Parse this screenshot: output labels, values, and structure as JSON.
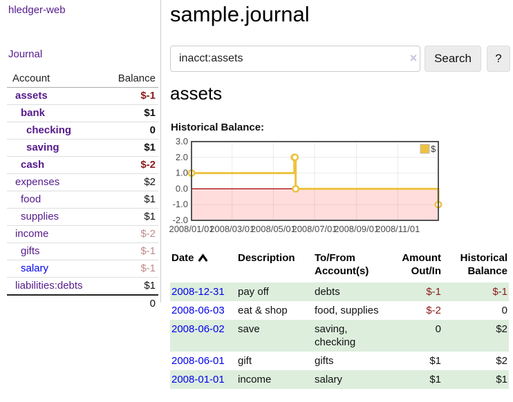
{
  "sidebar": {
    "brand": "hledger-web",
    "nav_journal": "Journal",
    "accounts": {
      "col_account": "Account",
      "col_balance": "Balance",
      "rows": [
        {
          "name": "assets",
          "depth": 1,
          "in_query": true,
          "balance": "$-1",
          "neg": "strong"
        },
        {
          "name": "bank",
          "depth": 2,
          "in_query": true,
          "balance": "$1",
          "neg": "none"
        },
        {
          "name": "checking",
          "depth": 3,
          "in_query": true,
          "balance": "0",
          "neg": "none"
        },
        {
          "name": "saving",
          "depth": 3,
          "in_query": true,
          "balance": "$1",
          "neg": "none"
        },
        {
          "name": "cash",
          "depth": 2,
          "in_query": true,
          "balance": "$-2",
          "neg": "strong"
        },
        {
          "name": "expenses",
          "depth": 1,
          "in_query": false,
          "balance": "$2",
          "neg": "none"
        },
        {
          "name": "food",
          "depth": 2,
          "in_query": false,
          "balance": "$1",
          "neg": "none"
        },
        {
          "name": "supplies",
          "depth": 2,
          "in_query": false,
          "balance": "$1",
          "neg": "none"
        },
        {
          "name": "income",
          "depth": 1,
          "in_query": false,
          "balance": "$-2",
          "neg": "dim"
        },
        {
          "name": "gifts",
          "depth": 2,
          "in_query": false,
          "balance": "$-1",
          "neg": "dim"
        },
        {
          "name": "salary",
          "depth": 2,
          "in_query": false,
          "balance": "$-1",
          "neg": "dim",
          "unvisited": true
        },
        {
          "name": "liabilities:debts",
          "depth": 1,
          "in_query": false,
          "balance": "$1",
          "neg": "none"
        }
      ],
      "total": "0"
    }
  },
  "main": {
    "title": "sample.journal",
    "search": {
      "value": "inacct:assets",
      "clear_label": "×",
      "button_label": "Search",
      "help_label": "?"
    },
    "account_heading": "assets",
    "chart_title": "Historical Balance:"
  },
  "chart_data": {
    "type": "line",
    "steps": true,
    "title": "Historical Balance",
    "x_range": [
      "2008-01-01",
      "2008-12-31"
    ],
    "ylim": [
      -2,
      3
    ],
    "y_ticks": [
      "3.0",
      "2.0",
      "1.0",
      "0.0",
      "-1.0",
      "-2.0"
    ],
    "x_tick_dates": [
      "2008-01-01",
      "2008-03-01",
      "2008-05-01",
      "2008-07-01",
      "2008-09-01",
      "2008-11-01"
    ],
    "x_tick_labels": [
      "2008/01/01",
      "2008/03/01",
      "2008/05/01",
      "2008/07/01",
      "2008/09/01",
      "2008/11/01"
    ],
    "legend": [
      {
        "label": "$",
        "color": "#edc240"
      }
    ],
    "series": [
      {
        "name": "$",
        "color": "#edc240",
        "points": [
          {
            "date": "2008-01-01",
            "value": 1
          },
          {
            "date": "2008-06-01",
            "value": 2
          },
          {
            "date": "2008-06-02",
            "value": 2
          },
          {
            "date": "2008-06-03",
            "value": 0
          },
          {
            "date": "2008-12-31",
            "value": -1
          }
        ]
      }
    ],
    "negative_region": {
      "from": 0,
      "to": -2,
      "color": "#ffdddd"
    },
    "zero_line_color": "#a40000",
    "grid": true,
    "legend_position": "top-right"
  },
  "register": {
    "headers": {
      "date": "Date",
      "description": "Description",
      "tofrom": "To/From Account(s)",
      "amount": "Amount Out/In",
      "balance": "Historical Balance"
    },
    "rows": [
      {
        "date": "2008-12-31",
        "description": "pay off",
        "accounts": "debts",
        "amount": "$-1",
        "amount_neg": true,
        "balance": "$-1",
        "balance_neg": true
      },
      {
        "date": "2008-06-03",
        "description": "eat & shop",
        "accounts": "food, supplies",
        "amount": "$-2",
        "amount_neg": true,
        "balance": "0",
        "balance_neg": false
      },
      {
        "date": "2008-06-02",
        "description": "save",
        "accounts": "saving, checking",
        "amount": "0",
        "amount_neg": false,
        "balance": "$2",
        "balance_neg": false
      },
      {
        "date": "2008-06-01",
        "description": "gift",
        "accounts": "gifts",
        "amount": "$1",
        "amount_neg": false,
        "balance": "$2",
        "balance_neg": false
      },
      {
        "date": "2008-01-01",
        "description": "income",
        "accounts": "salary",
        "amount": "$1",
        "amount_neg": false,
        "balance": "$1",
        "balance_neg": false
      }
    ]
  },
  "colors": {
    "link_visited_purple": "#551a8b",
    "link_blue": "#0000ee",
    "negative_strong": "#8b1a1a",
    "negative_dim": "#bd8a8a",
    "row_green": "#ddeedd",
    "series_yellow": "#edc240",
    "chart_negative_bg": "#ffdddd",
    "chart_zero_line": "#a40000",
    "chart_border": "#545454"
  }
}
